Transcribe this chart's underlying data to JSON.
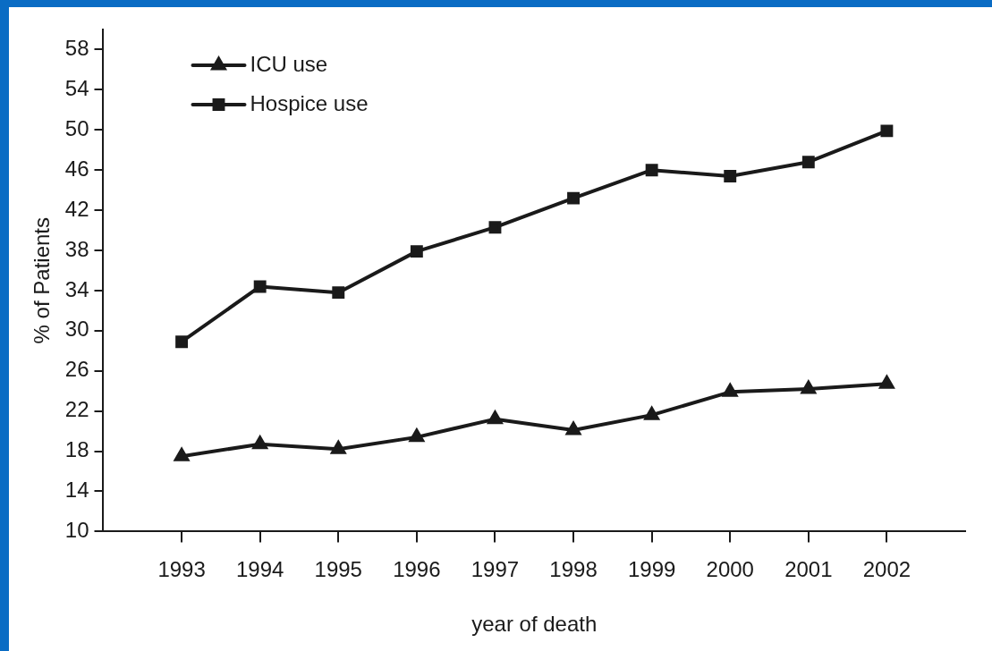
{
  "chart_data": {
    "type": "line",
    "xlabel": "year of death",
    "ylabel": "% of Patients",
    "x": [
      1993,
      1994,
      1995,
      1996,
      1997,
      1998,
      1999,
      2000,
      2001,
      2002
    ],
    "xlim": [
      1992,
      2003
    ],
    "xticks": [
      1993,
      1994,
      1995,
      1996,
      1997,
      1998,
      1999,
      2000,
      2001,
      2002
    ],
    "ylim": [
      10,
      60
    ],
    "yticks": [
      10,
      14,
      18,
      22,
      26,
      30,
      34,
      38,
      42,
      46,
      50,
      54,
      58
    ],
    "grid": false,
    "legend": "top left",
    "line_style": "solid",
    "series": [
      {
        "name": "ICU use",
        "color": "#1a1a1a",
        "marker": "triangle",
        "values": [
          17.5,
          18.7,
          18.2,
          19.4,
          21.2,
          20.1,
          21.6,
          23.9,
          24.2,
          24.7
        ]
      },
      {
        "name": "Hospice use",
        "color": "#1a1a1a",
        "marker": "square",
        "values": [
          28.9,
          34.4,
          33.8,
          37.9,
          40.3,
          43.2,
          46.0,
          45.4,
          46.8,
          49.9
        ]
      }
    ]
  }
}
